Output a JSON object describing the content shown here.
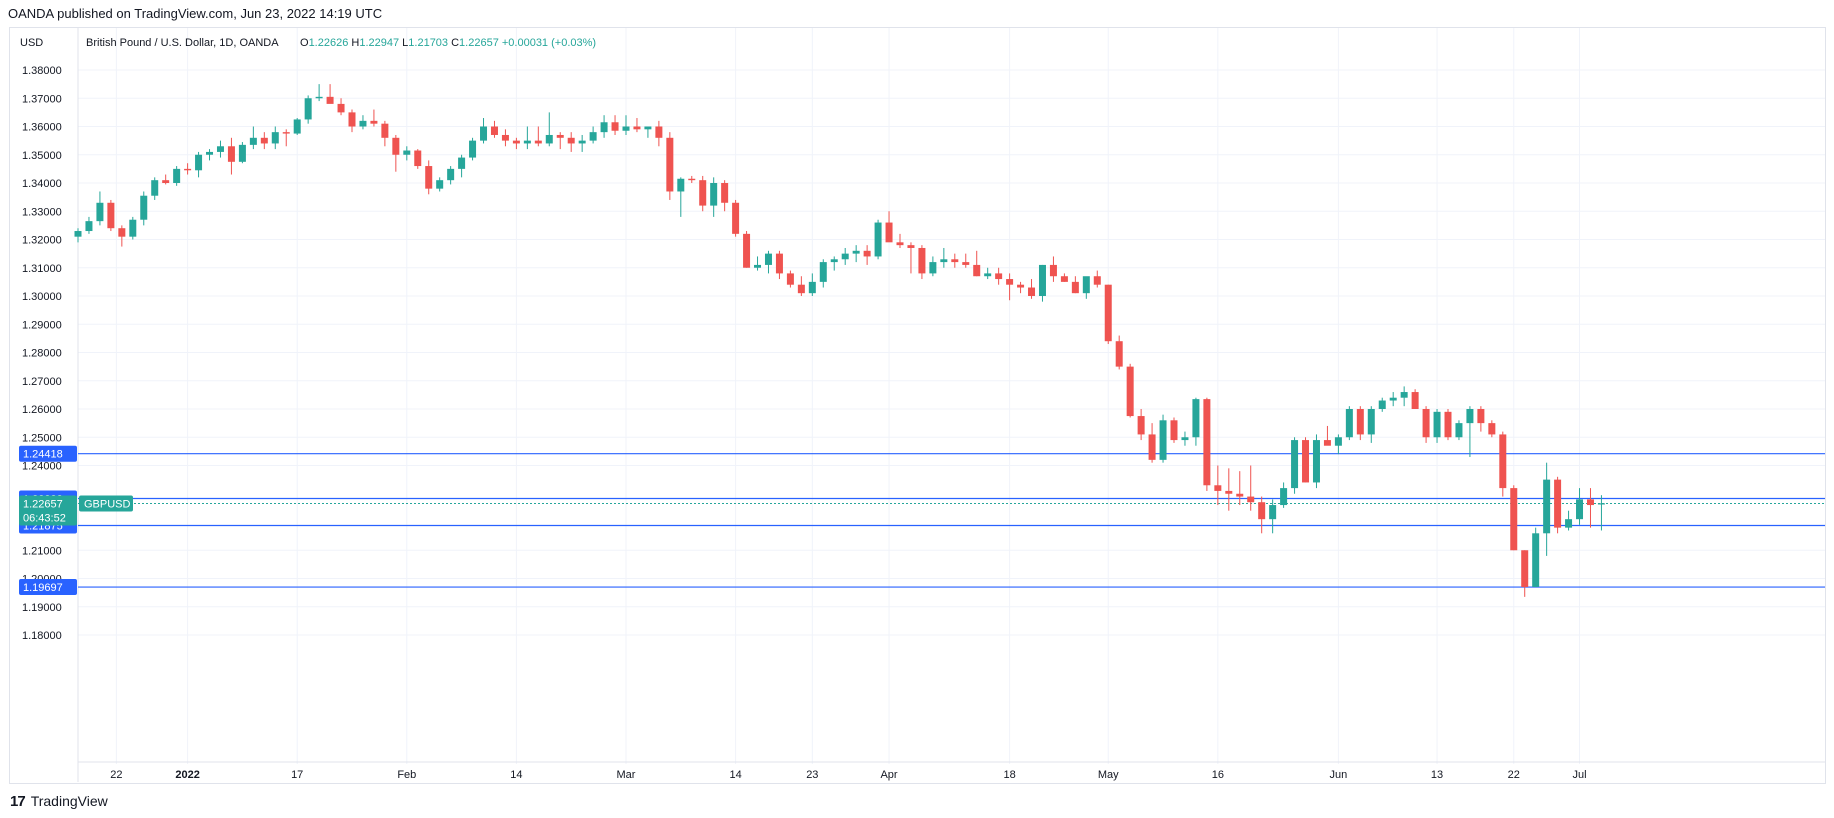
{
  "publisher_line": "OANDA published on TradingView.com, Jun 23, 2022 14:19 UTC",
  "footer_brand": "TradingView",
  "footer_icon": "tradingview-logo-icon",
  "colors": {
    "up": "#26a69a",
    "down": "#ef5350",
    "level_line": "#2962ff",
    "level_badge": "#2962ff",
    "price_badge": "#26a69a",
    "grid": "#f0f3fa",
    "axis_text": "#131722"
  },
  "chart_data": {
    "type": "candlestick",
    "title": "British Pound / U.S. Dollar, 1D, OANDA",
    "currency": "USD",
    "ohlc_header": {
      "o_label": "O",
      "o_value": "1.22626",
      "h_label": "H",
      "h_value": "1.22947",
      "l_label": "L",
      "l_value": "1.21703",
      "c_label": "C",
      "c_value": "1.22657",
      "change": "+0.00031 (+0.03%)"
    },
    "y_ticks": [
      "1.38000",
      "1.37000",
      "1.36000",
      "1.35000",
      "1.34000",
      "1.33000",
      "1.32000",
      "1.31000",
      "1.30000",
      "1.29000",
      "1.28000",
      "1.27000",
      "1.26000",
      "1.25000",
      "1.24000",
      "1.21000",
      "1.20000",
      "1.19000",
      "1.18000"
    ],
    "y_range": [
      1.1775,
      1.3915
    ],
    "x_ticks": [
      {
        "label": "22",
        "bold": false,
        "idx": 3.5
      },
      {
        "label": "2022",
        "bold": true,
        "idx": 10
      },
      {
        "label": "17",
        "bold": false,
        "idx": 20
      },
      {
        "label": "Feb",
        "bold": false,
        "idx": 30
      },
      {
        "label": "14",
        "bold": false,
        "idx": 40
      },
      {
        "label": "Mar",
        "bold": false,
        "idx": 50
      },
      {
        "label": "14",
        "bold": false,
        "idx": 60
      },
      {
        "label": "23",
        "bold": false,
        "idx": 67
      },
      {
        "label": "Apr",
        "bold": false,
        "idx": 74
      },
      {
        "label": "18",
        "bold": false,
        "idx": 85
      },
      {
        "label": "May",
        "bold": false,
        "idx": 94
      },
      {
        "label": "16",
        "bold": false,
        "idx": 104
      },
      {
        "label": "Jun",
        "bold": false,
        "idx": 115
      },
      {
        "label": "13",
        "bold": false,
        "idx": 124
      },
      {
        "label": "22",
        "bold": false,
        "idx": 131
      },
      {
        "label": "Jul",
        "bold": false,
        "idx": 137
      }
    ],
    "horizontal_levels": [
      {
        "label": "1.24418",
        "value": 1.24418
      },
      {
        "label": "1.22833",
        "value": 1.22833
      },
      {
        "label": "1.21875",
        "value": 1.21875
      },
      {
        "label": "1.19697",
        "value": 1.19697
      }
    ],
    "last_price": {
      "value": 1.22657,
      "label": "1.22657",
      "countdown": "06:43:52",
      "symbol": "GBPUSD"
    },
    "candles": [
      [
        1.321,
        1.324,
        1.319,
        1.323
      ],
      [
        1.323,
        1.328,
        1.322,
        1.3265
      ],
      [
        1.3265,
        1.337,
        1.325,
        1.333
      ],
      [
        1.333,
        1.334,
        1.323,
        1.324
      ],
      [
        1.324,
        1.325,
        1.3175,
        1.321
      ],
      [
        1.321,
        1.328,
        1.32,
        1.327
      ],
      [
        1.327,
        1.337,
        1.325,
        1.3355
      ],
      [
        1.3355,
        1.342,
        1.334,
        1.341
      ],
      [
        1.341,
        1.343,
        1.3395,
        1.34
      ],
      [
        1.34,
        1.346,
        1.339,
        1.345
      ],
      [
        1.345,
        1.347,
        1.343,
        1.3445
      ],
      [
        1.3445,
        1.351,
        1.342,
        1.35
      ],
      [
        1.35,
        1.352,
        1.348,
        1.351
      ],
      [
        1.351,
        1.355,
        1.349,
        1.353
      ],
      [
        1.353,
        1.356,
        1.343,
        1.3475
      ],
      [
        1.3475,
        1.3545,
        1.347,
        1.3535
      ],
      [
        1.3535,
        1.36,
        1.352,
        1.356
      ],
      [
        1.356,
        1.358,
        1.352,
        1.354
      ],
      [
        1.354,
        1.36,
        1.352,
        1.358
      ],
      [
        1.358,
        1.359,
        1.353,
        1.3575
      ],
      [
        1.3575,
        1.363,
        1.357,
        1.3625
      ],
      [
        1.3625,
        1.371,
        1.361,
        1.37
      ],
      [
        1.37,
        1.375,
        1.369,
        1.3705
      ],
      [
        1.3705,
        1.375,
        1.369,
        1.368
      ],
      [
        1.368,
        1.37,
        1.364,
        1.365
      ],
      [
        1.365,
        1.366,
        1.358,
        1.36
      ],
      [
        1.36,
        1.364,
        1.359,
        1.362
      ],
      [
        1.362,
        1.366,
        1.36,
        1.361
      ],
      [
        1.361,
        1.362,
        1.353,
        1.356
      ],
      [
        1.356,
        1.357,
        1.344,
        1.35
      ],
      [
        1.35,
        1.353,
        1.348,
        1.3515
      ],
      [
        1.3515,
        1.352,
        1.345,
        1.346
      ],
      [
        1.346,
        1.348,
        1.336,
        1.338
      ],
      [
        1.338,
        1.342,
        1.337,
        1.341
      ],
      [
        1.341,
        1.346,
        1.3395,
        1.345
      ],
      [
        1.345,
        1.35,
        1.342,
        1.349
      ],
      [
        1.349,
        1.356,
        1.348,
        1.355
      ],
      [
        1.355,
        1.363,
        1.354,
        1.36
      ],
      [
        1.36,
        1.362,
        1.356,
        1.357
      ],
      [
        1.357,
        1.359,
        1.353,
        1.355
      ],
      [
        1.355,
        1.356,
        1.352,
        1.354
      ],
      [
        1.354,
        1.36,
        1.352,
        1.355
      ],
      [
        1.355,
        1.36,
        1.353,
        1.354
      ],
      [
        1.354,
        1.365,
        1.353,
        1.357
      ],
      [
        1.357,
        1.358,
        1.352,
        1.356
      ],
      [
        1.356,
        1.358,
        1.351,
        1.354
      ],
      [
        1.354,
        1.357,
        1.351,
        1.355
      ],
      [
        1.355,
        1.36,
        1.354,
        1.358
      ],
      [
        1.358,
        1.364,
        1.356,
        1.3615
      ],
      [
        1.3615,
        1.364,
        1.357,
        1.3585
      ],
      [
        1.3585,
        1.364,
        1.357,
        1.36
      ],
      [
        1.36,
        1.363,
        1.358,
        1.359
      ],
      [
        1.359,
        1.36,
        1.356,
        1.36
      ],
      [
        1.36,
        1.362,
        1.353,
        1.356
      ],
      [
        1.356,
        1.358,
        1.334,
        1.337
      ],
      [
        1.337,
        1.342,
        1.328,
        1.3415
      ],
      [
        1.3415,
        1.3425,
        1.34,
        1.341
      ],
      [
        1.341,
        1.3425,
        1.33,
        1.332
      ],
      [
        1.332,
        1.342,
        1.328,
        1.34
      ],
      [
        1.34,
        1.341,
        1.33,
        1.333
      ],
      [
        1.333,
        1.334,
        1.321,
        1.322
      ],
      [
        1.322,
        1.323,
        1.31,
        1.31
      ],
      [
        1.31,
        1.314,
        1.309,
        1.311
      ],
      [
        1.311,
        1.316,
        1.308,
        1.315
      ],
      [
        1.315,
        1.316,
        1.306,
        1.308
      ],
      [
        1.308,
        1.309,
        1.303,
        1.304
      ],
      [
        1.304,
        1.307,
        1.3,
        1.301
      ],
      [
        1.301,
        1.308,
        1.3,
        1.305
      ],
      [
        1.305,
        1.313,
        1.303,
        1.312
      ],
      [
        1.312,
        1.314,
        1.309,
        1.313
      ],
      [
        1.313,
        1.317,
        1.311,
        1.315
      ],
      [
        1.315,
        1.318,
        1.312,
        1.316
      ],
      [
        1.316,
        1.318,
        1.311,
        1.314
      ],
      [
        1.314,
        1.327,
        1.313,
        1.326
      ],
      [
        1.326,
        1.33,
        1.32,
        1.319
      ],
      [
        1.319,
        1.322,
        1.317,
        1.318
      ],
      [
        1.318,
        1.319,
        1.308,
        1.317
      ],
      [
        1.317,
        1.318,
        1.306,
        1.308
      ],
      [
        1.308,
        1.314,
        1.307,
        1.312
      ],
      [
        1.312,
        1.317,
        1.31,
        1.313
      ],
      [
        1.313,
        1.315,
        1.31,
        1.312
      ],
      [
        1.312,
        1.315,
        1.31,
        1.311
      ],
      [
        1.311,
        1.316,
        1.307,
        1.307
      ],
      [
        1.307,
        1.31,
        1.306,
        1.308
      ],
      [
        1.308,
        1.31,
        1.304,
        1.306
      ],
      [
        1.306,
        1.308,
        1.2985,
        1.304
      ],
      [
        1.304,
        1.305,
        1.301,
        1.303
      ],
      [
        1.303,
        1.306,
        1.299,
        1.3
      ],
      [
        1.3,
        1.311,
        1.298,
        1.311
      ],
      [
        1.311,
        1.314,
        1.305,
        1.307
      ],
      [
        1.307,
        1.308,
        1.305,
        1.305
      ],
      [
        1.305,
        1.307,
        1.301,
        1.301
      ],
      [
        1.301,
        1.306,
        1.299,
        1.307
      ],
      [
        1.307,
        1.309,
        1.303,
        1.304
      ],
      [
        1.304,
        1.304,
        1.283,
        1.284
      ],
      [
        1.284,
        1.286,
        1.274,
        1.275
      ],
      [
        1.275,
        1.276,
        1.257,
        1.2575
      ],
      [
        1.2575,
        1.26,
        1.249,
        1.251
      ],
      [
        1.251,
        1.255,
        1.241,
        1.242
      ],
      [
        1.242,
        1.258,
        1.241,
        1.256
      ],
      [
        1.256,
        1.257,
        1.248,
        1.249
      ],
      [
        1.249,
        1.252,
        1.247,
        1.25
      ],
      [
        1.25,
        1.264,
        1.247,
        1.2635
      ],
      [
        1.2635,
        1.264,
        1.231,
        1.233
      ],
      [
        1.233,
        1.24,
        1.226,
        1.231
      ],
      [
        1.231,
        1.239,
        1.224,
        1.23
      ],
      [
        1.23,
        1.238,
        1.226,
        1.229
      ],
      [
        1.229,
        1.24,
        1.224,
        1.227
      ],
      [
        1.227,
        1.229,
        1.216,
        1.221
      ],
      [
        1.221,
        1.228,
        1.216,
        1.226
      ],
      [
        1.226,
        1.234,
        1.225,
        1.232
      ],
      [
        1.232,
        1.25,
        1.23,
        1.249
      ],
      [
        1.249,
        1.25,
        1.234,
        1.234
      ],
      [
        1.234,
        1.251,
        1.232,
        1.249
      ],
      [
        1.249,
        1.254,
        1.248,
        1.247
      ],
      [
        1.247,
        1.251,
        1.244,
        1.25
      ],
      [
        1.25,
        1.261,
        1.249,
        1.26
      ],
      [
        1.26,
        1.261,
        1.249,
        1.251
      ],
      [
        1.251,
        1.261,
        1.248,
        1.26
      ],
      [
        1.26,
        1.264,
        1.259,
        1.263
      ],
      [
        1.263,
        1.266,
        1.261,
        1.264
      ],
      [
        1.264,
        1.268,
        1.261,
        1.266
      ],
      [
        1.266,
        1.267,
        1.26,
        1.26
      ],
      [
        1.26,
        1.261,
        1.248,
        1.25
      ],
      [
        1.25,
        1.26,
        1.248,
        1.259
      ],
      [
        1.259,
        1.26,
        1.249,
        1.25
      ],
      [
        1.25,
        1.256,
        1.249,
        1.255
      ],
      [
        1.255,
        1.261,
        1.243,
        1.26
      ],
      [
        1.26,
        1.261,
        1.252,
        1.255
      ],
      [
        1.255,
        1.256,
        1.25,
        1.251
      ],
      [
        1.251,
        1.252,
        1.229,
        1.232
      ],
      [
        1.232,
        1.233,
        1.21,
        1.21
      ],
      [
        1.21,
        1.21,
        1.1935,
        1.197
      ],
      [
        1.197,
        1.218,
        1.197,
        1.216
      ],
      [
        1.216,
        1.241,
        1.208,
        1.235
      ],
      [
        1.235,
        1.236,
        1.216,
        1.218
      ],
      [
        1.218,
        1.224,
        1.217,
        1.221
      ],
      [
        1.221,
        1.232,
        1.219,
        1.228
      ],
      [
        1.228,
        1.232,
        1.218,
        1.226
      ],
      [
        1.2262,
        1.2295,
        1.217,
        1.2266
      ]
    ]
  }
}
